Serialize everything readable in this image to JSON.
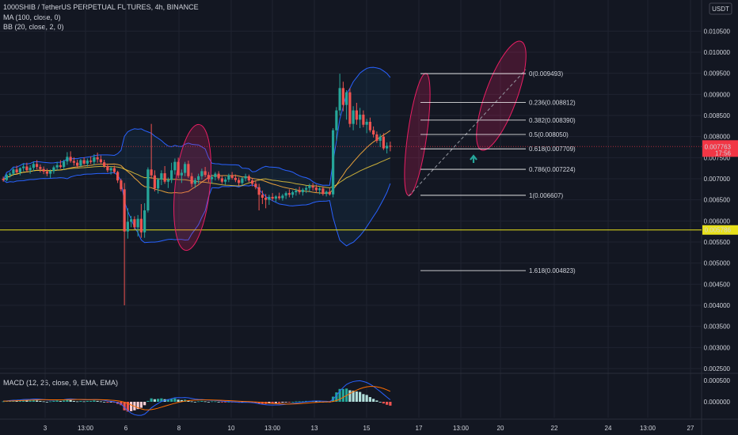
{
  "header": {
    "symbol": "1000SHIB / TetherUS PERPETUAL FUTURES, 4h, BINANCE",
    "ma": "MA (100, close, 0)",
    "bb": "BB (20, close, 2, 0)",
    "macd": "MACD (12, 26, close, 9, EMA, EMA)"
  },
  "price_axis": {
    "currency": "USDT",
    "ticks": [
      "0.010500",
      "0.010000",
      "0.009500",
      "0.009000",
      "0.008500",
      "0.008000",
      "0.007500",
      "0.007000",
      "0.006500",
      "0.006000",
      "0.005500",
      "0.005000",
      "0.004500",
      "0.004000",
      "0.003500",
      "0.003000",
      "0.002500"
    ],
    "current_price": "0.007763",
    "countdown": "17:56",
    "current_color": "#f23645",
    "hline_price": "0.005786",
    "hline_color": "#e8e11b"
  },
  "macd_axis": {
    "ticks": [
      "0.000500",
      "0.000000"
    ]
  },
  "time_axis": {
    "labels": [
      "3",
      "13:00",
      "6",
      "8",
      "10",
      "13:00",
      "13",
      "15",
      "17",
      "13:00",
      "20",
      "22",
      "24",
      "13:00",
      "27"
    ]
  },
  "chart_data": {
    "type": "candlestick",
    "interval": "4h",
    "ylim": [
      0.0022,
      0.0111
    ],
    "colors": {
      "up": "#26a69a",
      "down": "#ef5350",
      "ma": "#e8a13b",
      "bb": "#2962ff",
      "fib": "#ffffff",
      "ellipse": "#e91e63"
    },
    "candles": [
      [
        0.007,
        0.00705,
        0.00693,
        0.00697
      ],
      [
        0.00697,
        0.00712,
        0.00694,
        0.00709
      ],
      [
        0.00709,
        0.00716,
        0.00703,
        0.00712
      ],
      [
        0.00712,
        0.00726,
        0.00707,
        0.00722
      ],
      [
        0.00722,
        0.00731,
        0.00712,
        0.00715
      ],
      [
        0.00715,
        0.00727,
        0.00708,
        0.00725
      ],
      [
        0.00725,
        0.00737,
        0.00718,
        0.00729
      ],
      [
        0.00729,
        0.00738,
        0.00716,
        0.0072
      ],
      [
        0.0072,
        0.00732,
        0.00712,
        0.00726
      ],
      [
        0.00726,
        0.00741,
        0.00718,
        0.00735
      ],
      [
        0.00735,
        0.00744,
        0.00722,
        0.00728
      ],
      [
        0.00728,
        0.00734,
        0.00715,
        0.00723
      ],
      [
        0.00723,
        0.00729,
        0.00711,
        0.00717
      ],
      [
        0.00717,
        0.00724,
        0.00706,
        0.00712
      ],
      [
        0.00712,
        0.00722,
        0.00702,
        0.00718
      ],
      [
        0.00718,
        0.00731,
        0.00712,
        0.00727
      ],
      [
        0.00727,
        0.0074,
        0.0072,
        0.00732
      ],
      [
        0.00732,
        0.00744,
        0.00724,
        0.00728
      ],
      [
        0.00728,
        0.00745,
        0.00721,
        0.00741
      ],
      [
        0.00741,
        0.00763,
        0.00733,
        0.00752
      ],
      [
        0.00752,
        0.00765,
        0.00738,
        0.00742
      ],
      [
        0.00742,
        0.00751,
        0.00731,
        0.00738
      ],
      [
        0.00738,
        0.00745,
        0.00726,
        0.00731
      ],
      [
        0.00731,
        0.00747,
        0.00728,
        0.00744
      ],
      [
        0.00744,
        0.00751,
        0.00733,
        0.00736
      ],
      [
        0.00736,
        0.00748,
        0.00729,
        0.00743
      ],
      [
        0.00743,
        0.00753,
        0.00735,
        0.0074
      ],
      [
        0.0074,
        0.00758,
        0.00732,
        0.00751
      ],
      [
        0.00751,
        0.00762,
        0.00738,
        0.00746
      ],
      [
        0.00746,
        0.00755,
        0.00736,
        0.00739
      ],
      [
        0.00739,
        0.00745,
        0.00726,
        0.0073
      ],
      [
        0.0073,
        0.00736,
        0.00715,
        0.0072
      ],
      [
        0.0072,
        0.00729,
        0.0071,
        0.00725
      ],
      [
        0.00725,
        0.00731,
        0.00712,
        0.00716
      ],
      [
        0.00716,
        0.00719,
        0.0069,
        0.00696
      ],
      [
        0.00696,
        0.007,
        0.0067,
        0.00675
      ],
      [
        0.00675,
        0.0069,
        0.004,
        0.00575
      ],
      [
        0.00575,
        0.0063,
        0.00558,
        0.00598
      ],
      [
        0.00598,
        0.00612,
        0.00585,
        0.00604
      ],
      [
        0.00604,
        0.00611,
        0.0058,
        0.00585
      ],
      [
        0.00585,
        0.00614,
        0.00563,
        0.00605
      ],
      [
        0.00605,
        0.0064,
        0.0056,
        0.00573
      ],
      [
        0.00573,
        0.00642,
        0.0056,
        0.00625
      ],
      [
        0.00625,
        0.00727,
        0.0062,
        0.00722
      ],
      [
        0.00722,
        0.0083,
        0.007,
        0.00708
      ],
      [
        0.00708,
        0.0072,
        0.0067,
        0.00677
      ],
      [
        0.00677,
        0.00702,
        0.00665,
        0.00698
      ],
      [
        0.00698,
        0.0072,
        0.00685,
        0.00713
      ],
      [
        0.00713,
        0.0073,
        0.00688,
        0.00693
      ],
      [
        0.00693,
        0.00703,
        0.00678,
        0.00697
      ],
      [
        0.00697,
        0.00738,
        0.0069,
        0.0072
      ],
      [
        0.0072,
        0.00748,
        0.0071,
        0.0074
      ],
      [
        0.0074,
        0.0075,
        0.00702,
        0.00708
      ],
      [
        0.00708,
        0.00722,
        0.0069,
        0.00714
      ],
      [
        0.00714,
        0.0074,
        0.00706,
        0.00735
      ],
      [
        0.00735,
        0.00743,
        0.00702,
        0.00706
      ],
      [
        0.00706,
        0.00714,
        0.0068,
        0.00688
      ],
      [
        0.00688,
        0.00702,
        0.00678,
        0.00697
      ],
      [
        0.00697,
        0.00712,
        0.00688,
        0.00706
      ],
      [
        0.00706,
        0.00724,
        0.00698,
        0.00718
      ],
      [
        0.00718,
        0.00728,
        0.00704,
        0.00709
      ],
      [
        0.00709,
        0.00716,
        0.00692,
        0.00699
      ],
      [
        0.00699,
        0.0071,
        0.0069,
        0.00704
      ],
      [
        0.00704,
        0.00716,
        0.00696,
        0.00712
      ],
      [
        0.00712,
        0.00718,
        0.00696,
        0.00701
      ],
      [
        0.00701,
        0.00708,
        0.00688,
        0.00693
      ],
      [
        0.00693,
        0.00704,
        0.00686,
        0.00698
      ],
      [
        0.00698,
        0.00712,
        0.00692,
        0.00708
      ],
      [
        0.00708,
        0.00716,
        0.00698,
        0.00702
      ],
      [
        0.00702,
        0.0071,
        0.00692,
        0.00697
      ],
      [
        0.00697,
        0.00703,
        0.00684,
        0.0069
      ],
      [
        0.0069,
        0.00704,
        0.00685,
        0.00701
      ],
      [
        0.00701,
        0.00712,
        0.00694,
        0.00706
      ],
      [
        0.00706,
        0.0071,
        0.00692,
        0.00696
      ],
      [
        0.00696,
        0.00702,
        0.00682,
        0.00688
      ],
      [
        0.00688,
        0.00696,
        0.00675,
        0.0068
      ],
      [
        0.0068,
        0.00688,
        0.00625,
        0.00662
      ],
      [
        0.00662,
        0.00672,
        0.0064,
        0.00655
      ],
      [
        0.00655,
        0.00664,
        0.0063,
        0.0065
      ],
      [
        0.0065,
        0.00662,
        0.00638,
        0.00657
      ],
      [
        0.00657,
        0.00666,
        0.00648,
        0.00653
      ],
      [
        0.00653,
        0.00661,
        0.00645,
        0.00658
      ],
      [
        0.00658,
        0.00667,
        0.0065,
        0.00654
      ],
      [
        0.00654,
        0.00664,
        0.00648,
        0.0066
      ],
      [
        0.0066,
        0.0067,
        0.00652,
        0.00666
      ],
      [
        0.00666,
        0.00675,
        0.00656,
        0.00662
      ],
      [
        0.00662,
        0.00672,
        0.00655,
        0.00668
      ],
      [
        0.00668,
        0.00677,
        0.0066,
        0.00672
      ],
      [
        0.00672,
        0.00681,
        0.00663,
        0.00668
      ],
      [
        0.00668,
        0.00678,
        0.0066,
        0.00674
      ],
      [
        0.00674,
        0.00684,
        0.00666,
        0.00678
      ],
      [
        0.00678,
        0.00688,
        0.00668,
        0.00683
      ],
      [
        0.00683,
        0.0069,
        0.00672,
        0.00679
      ],
      [
        0.00679,
        0.00686,
        0.00668,
        0.00673
      ],
      [
        0.00673,
        0.0068,
        0.00663,
        0.00677
      ],
      [
        0.00677,
        0.00682,
        0.0066,
        0.00664
      ],
      [
        0.00664,
        0.00672,
        0.00658,
        0.00669
      ],
      [
        0.00669,
        0.00677,
        0.0066,
        0.00663
      ],
      [
        0.00663,
        0.0082,
        0.00656,
        0.00815
      ],
      [
        0.00815,
        0.0087,
        0.0079,
        0.00862
      ],
      [
        0.00862,
        0.00949,
        0.0085,
        0.00915
      ],
      [
        0.00915,
        0.0093,
        0.0086,
        0.00875
      ],
      [
        0.00875,
        0.0091,
        0.0084,
        0.00905
      ],
      [
        0.00905,
        0.00915,
        0.00822,
        0.0083
      ],
      [
        0.0083,
        0.00872,
        0.00815,
        0.00862
      ],
      [
        0.00862,
        0.0088,
        0.00828,
        0.0084
      ],
      [
        0.0084,
        0.00868,
        0.0082,
        0.00852
      ],
      [
        0.00852,
        0.00862,
        0.00822,
        0.00828
      ],
      [
        0.00828,
        0.00842,
        0.00808,
        0.00835
      ],
      [
        0.00835,
        0.00845,
        0.0081,
        0.00815
      ],
      [
        0.00815,
        0.00824,
        0.00798,
        0.00805
      ],
      [
        0.00805,
        0.00812,
        0.00785,
        0.0079
      ],
      [
        0.0079,
        0.00806,
        0.00775,
        0.008
      ],
      [
        0.008,
        0.00808,
        0.00768,
        0.00772
      ],
      [
        0.00772,
        0.00786,
        0.0076,
        0.00778
      ],
      [
        0.00778,
        0.00788,
        0.00765,
        0.00776
      ]
    ],
    "fib_levels": [
      {
        "label": "0(0.009493)",
        "value": 0.009493
      },
      {
        "label": "0.236(0.008812)",
        "value": 0.008812
      },
      {
        "label": "0.382(0.008390)",
        "value": 0.00839
      },
      {
        "label": "0.5(0.008050)",
        "value": 0.00805
      },
      {
        "label": "0.618(0.007709)",
        "value": 0.007709
      },
      {
        "label": "0.786(0.007224)",
        "value": 0.007224
      },
      {
        "label": "1(0.006607)",
        "value": 0.006607
      },
      {
        "label": "1.618(0.004823)",
        "value": 0.004823
      }
    ],
    "macd": {
      "ylim": [
        -0.0003,
        0.00075
      ],
      "hist": [
        1e-05,
        2e-05,
        3e-05,
        3e-05,
        2e-05,
        3e-05,
        4e-05,
        3e-05,
        3e-05,
        4e-05,
        3e-05,
        2e-05,
        1e-05,
        0.0,
        1e-05,
        2e-05,
        3e-05,
        2e-05,
        3e-05,
        5e-05,
        4e-05,
        2e-05,
        1e-05,
        2e-05,
        1e-05,
        2e-05,
        2e-05,
        3e-05,
        2e-05,
        1e-05,
        0.0,
        -2e-05,
        -1e-05,
        -2e-05,
        -5e-05,
        -8e-05,
        -0.0002,
        -0.00023,
        -0.00022,
        -0.0002,
        -0.00017,
        -0.00014,
        -8e-05,
        2e-05,
        8e-05,
        6e-05,
        7e-05,
        8e-05,
        6e-05,
        6e-05,
        7e-05,
        8e-05,
        5e-05,
        4e-05,
        5e-05,
        3e-05,
        1e-05,
        0.0,
        1e-05,
        2e-05,
        1e-05,
        0.0,
        1e-05,
        1e-05,
        0.0,
        -1e-05,
        -1e-05,
        0.0,
        -1e-05,
        -1e-05,
        -2e-05,
        -1e-05,
        0.0,
        -1e-05,
        -2e-05,
        -3e-05,
        -5e-05,
        -5e-05,
        -5e-05,
        -4e-05,
        -4e-05,
        -3e-05,
        -3e-05,
        -2e-05,
        -1e-05,
        -1e-05,
        0.0,
        1e-05,
        1e-05,
        1e-05,
        2e-05,
        2e-05,
        2e-05,
        1e-05,
        1e-05,
        0.0,
        0.0,
        -1e-05,
        0.00012,
        0.00022,
        0.0003,
        0.0003,
        0.00031,
        0.00027,
        0.00026,
        0.00024,
        0.00023,
        0.00018,
        0.00016,
        0.00011,
        7e-05,
        3e-05,
        0.0,
        -4e-05,
        -7e-05,
        -9e-05
      ]
    }
  }
}
